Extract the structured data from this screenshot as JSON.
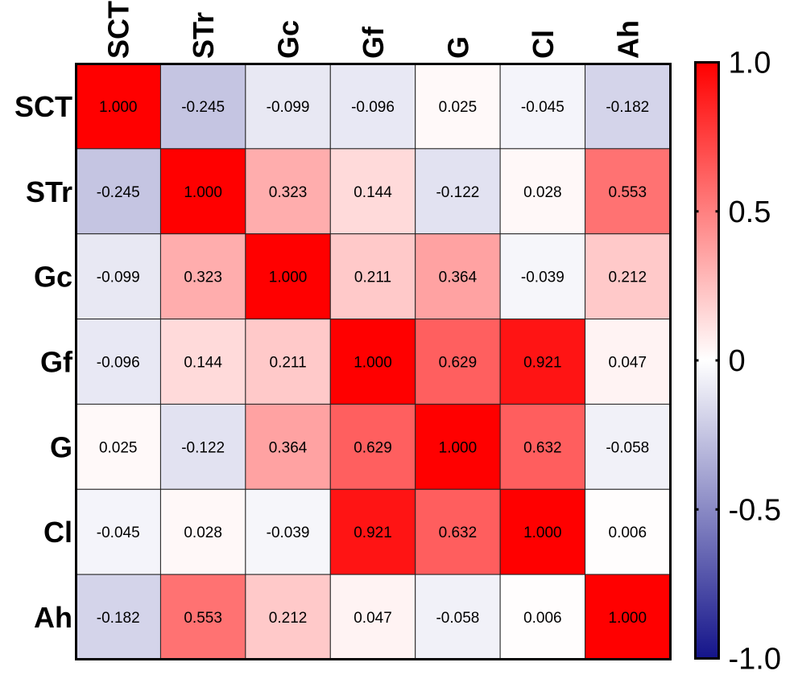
{
  "chart_data": {
    "type": "heatmap",
    "title": "",
    "xlabel": "",
    "ylabel": "",
    "columns": [
      "SCT",
      "STr",
      "Gc",
      "Gf",
      "G",
      "Cl",
      "Ah"
    ],
    "rows": [
      "SCT",
      "STr",
      "Gc",
      "Gf",
      "G",
      "Cl",
      "Ah"
    ],
    "values": [
      [
        1.0,
        -0.245,
        -0.099,
        -0.096,
        0.025,
        -0.045,
        -0.182
      ],
      [
        -0.245,
        1.0,
        0.323,
        0.144,
        -0.122,
        0.028,
        0.553
      ],
      [
        -0.099,
        0.323,
        1.0,
        0.211,
        0.364,
        -0.039,
        0.212
      ],
      [
        -0.096,
        0.144,
        0.211,
        1.0,
        0.629,
        0.921,
        0.047
      ],
      [
        0.025,
        -0.122,
        0.364,
        0.629,
        1.0,
        0.632,
        -0.058
      ],
      [
        -0.045,
        0.028,
        -0.039,
        0.921,
        0.632,
        1.0,
        0.006
      ],
      [
        -0.182,
        0.553,
        0.212,
        0.047,
        -0.058,
        0.006,
        1.0
      ]
    ],
    "value_format_decimals": 3,
    "colorbar": {
      "range": [
        -1.0,
        1.0
      ],
      "ticks": [
        1.0,
        0.5,
        0,
        -0.5,
        -1.0
      ],
      "tick_labels": [
        "1.0",
        "0.5",
        "0",
        "-0.5",
        "-1.0"
      ],
      "colors": {
        "max": "#FF0000",
        "mid": "#FFFFFF",
        "min": "#14148A"
      }
    }
  }
}
